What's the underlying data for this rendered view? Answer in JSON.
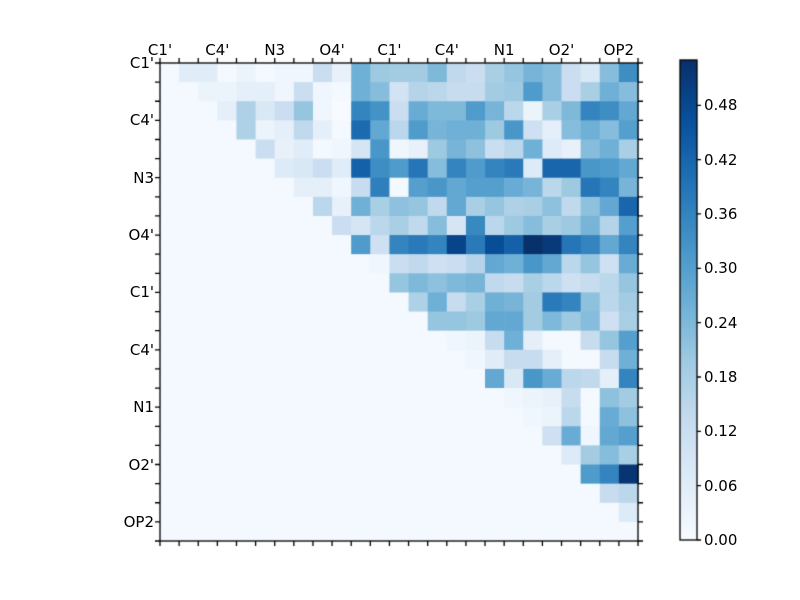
{
  "chart_data": {
    "type": "heatmap",
    "title": "",
    "colormap": "Blues",
    "vmin": 0.0,
    "vmax": 0.53,
    "n": 25,
    "x_labels": [
      "C1'",
      "C4'",
      "N3",
      "O4'",
      "C1'",
      "C4'",
      "N1",
      "O2'",
      "OP2"
    ],
    "y_labels": [
      "C1'",
      "C4'",
      "N3",
      "O4'",
      "C1'",
      "C4'",
      "N1",
      "O2'",
      "OP2"
    ],
    "label_tick_positions": [
      0,
      3,
      6,
      9,
      12,
      15,
      18,
      21,
      24
    ],
    "grid": false,
    "frame_color": "#000000",
    "background_color": "#ffffff",
    "colorbar": {
      "position": "right",
      "tick_labels": [
        "0.48",
        "0.42",
        "0.36",
        "0.30",
        "0.24",
        "0.18",
        "0.12",
        "0.06",
        "0.00"
      ],
      "tick_values": [
        0.48,
        0.42,
        0.36,
        0.3,
        0.24,
        0.18,
        0.12,
        0.06,
        0.0
      ]
    },
    "matrix": [
      [
        0.01,
        0.06,
        0.06,
        0.01,
        0.03,
        0.01,
        0.02,
        0.02,
        0.12,
        0.04,
        0.26,
        0.2,
        0.19,
        0.19,
        0.24,
        0.14,
        0.12,
        0.18,
        0.21,
        0.25,
        0.23,
        0.12,
        0.08,
        0.23,
        0.34
      ],
      [
        0.01,
        0.01,
        0.03,
        0.03,
        0.05,
        0.05,
        0.02,
        0.12,
        0.02,
        0.01,
        0.26,
        0.23,
        0.1,
        0.16,
        0.15,
        0.13,
        0.13,
        0.19,
        0.2,
        0.31,
        0.23,
        0.12,
        0.18,
        0.26,
        0.23
      ],
      [
        0.01,
        0.01,
        0.01,
        0.05,
        0.17,
        0.08,
        0.12,
        0.21,
        0.02,
        0.0,
        0.36,
        0.33,
        0.12,
        0.27,
        0.24,
        0.24,
        0.31,
        0.25,
        0.15,
        0.03,
        0.18,
        0.24,
        0.36,
        0.34,
        0.28
      ],
      [
        0.01,
        0.01,
        0.01,
        0.01,
        0.17,
        0.03,
        0.05,
        0.14,
        0.05,
        0.01,
        0.41,
        0.28,
        0.15,
        0.31,
        0.25,
        0.26,
        0.26,
        0.2,
        0.32,
        0.11,
        0.05,
        0.23,
        0.26,
        0.23,
        0.3
      ],
      [
        0.01,
        0.01,
        0.01,
        0.01,
        0.01,
        0.12,
        0.04,
        0.06,
        0.01,
        0.02,
        0.09,
        0.32,
        0.02,
        0.04,
        0.2,
        0.25,
        0.22,
        0.12,
        0.15,
        0.26,
        0.07,
        0.04,
        0.23,
        0.26,
        0.18
      ],
      [
        0.01,
        0.01,
        0.01,
        0.01,
        0.01,
        0.01,
        0.07,
        0.08,
        0.12,
        0.06,
        0.43,
        0.34,
        0.31,
        0.39,
        0.23,
        0.36,
        0.31,
        0.36,
        0.38,
        0.07,
        0.42,
        0.42,
        0.32,
        0.31,
        0.28
      ],
      [
        0.01,
        0.01,
        0.01,
        0.01,
        0.01,
        0.01,
        0.01,
        0.05,
        0.05,
        0.02,
        0.13,
        0.37,
        0.01,
        0.3,
        0.32,
        0.28,
        0.3,
        0.3,
        0.27,
        0.25,
        0.15,
        0.2,
        0.39,
        0.36,
        0.25
      ],
      [
        0.01,
        0.01,
        0.01,
        0.01,
        0.01,
        0.01,
        0.01,
        0.01,
        0.15,
        0.04,
        0.26,
        0.18,
        0.22,
        0.21,
        0.14,
        0.28,
        0.18,
        0.21,
        0.17,
        0.18,
        0.22,
        0.14,
        0.22,
        0.28,
        0.42
      ],
      [
        0.01,
        0.01,
        0.01,
        0.01,
        0.01,
        0.01,
        0.01,
        0.01,
        0.01,
        0.12,
        0.09,
        0.15,
        0.18,
        0.14,
        0.23,
        0.09,
        0.35,
        0.15,
        0.2,
        0.23,
        0.18,
        0.2,
        0.25,
        0.16,
        0.3
      ],
      [
        0.01,
        0.01,
        0.01,
        0.01,
        0.01,
        0.01,
        0.01,
        0.01,
        0.01,
        0.01,
        0.31,
        0.11,
        0.36,
        0.38,
        0.36,
        0.49,
        0.38,
        0.47,
        0.43,
        0.53,
        0.51,
        0.39,
        0.36,
        0.28,
        0.36
      ],
      [
        0.01,
        0.01,
        0.01,
        0.01,
        0.01,
        0.01,
        0.01,
        0.01,
        0.01,
        0.01,
        0.01,
        0.02,
        0.12,
        0.14,
        0.11,
        0.12,
        0.16,
        0.28,
        0.26,
        0.32,
        0.28,
        0.15,
        0.21,
        0.11,
        0.27
      ],
      [
        0.01,
        0.01,
        0.01,
        0.01,
        0.01,
        0.01,
        0.01,
        0.01,
        0.01,
        0.01,
        0.01,
        0.01,
        0.21,
        0.24,
        0.22,
        0.24,
        0.25,
        0.14,
        0.13,
        0.18,
        0.15,
        0.11,
        0.13,
        0.15,
        0.21
      ],
      [
        0.01,
        0.01,
        0.01,
        0.01,
        0.01,
        0.01,
        0.01,
        0.01,
        0.01,
        0.01,
        0.01,
        0.01,
        0.01,
        0.17,
        0.26,
        0.13,
        0.18,
        0.26,
        0.25,
        0.19,
        0.38,
        0.36,
        0.22,
        0.15,
        0.19
      ],
      [
        0.01,
        0.01,
        0.01,
        0.01,
        0.01,
        0.01,
        0.01,
        0.01,
        0.01,
        0.01,
        0.01,
        0.01,
        0.01,
        0.01,
        0.21,
        0.21,
        0.2,
        0.28,
        0.28,
        0.19,
        0.24,
        0.2,
        0.23,
        0.11,
        0.18
      ],
      [
        0.01,
        0.01,
        0.01,
        0.01,
        0.01,
        0.01,
        0.01,
        0.01,
        0.01,
        0.01,
        0.01,
        0.01,
        0.01,
        0.01,
        0.01,
        0.02,
        0.03,
        0.13,
        0.26,
        0.05,
        0.01,
        0.01,
        0.13,
        0.21,
        0.3
      ],
      [
        0.01,
        0.01,
        0.01,
        0.01,
        0.01,
        0.01,
        0.01,
        0.01,
        0.01,
        0.01,
        0.01,
        0.01,
        0.01,
        0.01,
        0.01,
        0.01,
        0.02,
        0.06,
        0.13,
        0.13,
        0.05,
        0.01,
        0.01,
        0.13,
        0.26
      ],
      [
        0.01,
        0.01,
        0.01,
        0.01,
        0.01,
        0.01,
        0.01,
        0.01,
        0.01,
        0.01,
        0.01,
        0.01,
        0.01,
        0.01,
        0.01,
        0.01,
        0.01,
        0.28,
        0.08,
        0.32,
        0.27,
        0.15,
        0.14,
        0.05,
        0.36
      ],
      [
        0.01,
        0.01,
        0.01,
        0.01,
        0.01,
        0.01,
        0.01,
        0.01,
        0.01,
        0.01,
        0.01,
        0.01,
        0.01,
        0.01,
        0.01,
        0.01,
        0.01,
        0.01,
        0.02,
        0.03,
        0.04,
        0.13,
        0.01,
        0.22,
        0.19
      ],
      [
        0.01,
        0.01,
        0.01,
        0.01,
        0.01,
        0.01,
        0.01,
        0.01,
        0.01,
        0.01,
        0.01,
        0.01,
        0.01,
        0.01,
        0.01,
        0.01,
        0.01,
        0.01,
        0.01,
        0.02,
        0.03,
        0.15,
        0.01,
        0.27,
        0.22
      ],
      [
        0.01,
        0.01,
        0.01,
        0.01,
        0.01,
        0.01,
        0.01,
        0.01,
        0.01,
        0.01,
        0.01,
        0.01,
        0.01,
        0.01,
        0.01,
        0.01,
        0.01,
        0.01,
        0.01,
        0.01,
        0.11,
        0.27,
        0.02,
        0.28,
        0.3
      ],
      [
        0.01,
        0.01,
        0.01,
        0.01,
        0.01,
        0.01,
        0.01,
        0.01,
        0.01,
        0.01,
        0.01,
        0.01,
        0.01,
        0.01,
        0.01,
        0.01,
        0.01,
        0.01,
        0.01,
        0.01,
        0.01,
        0.07,
        0.19,
        0.23,
        0.18
      ],
      [
        0.01,
        0.01,
        0.01,
        0.01,
        0.01,
        0.01,
        0.01,
        0.01,
        0.01,
        0.01,
        0.01,
        0.01,
        0.01,
        0.01,
        0.01,
        0.01,
        0.01,
        0.01,
        0.01,
        0.01,
        0.01,
        0.01,
        0.31,
        0.36,
        0.52
      ],
      [
        0.01,
        0.01,
        0.01,
        0.01,
        0.01,
        0.01,
        0.01,
        0.01,
        0.01,
        0.01,
        0.01,
        0.01,
        0.01,
        0.01,
        0.01,
        0.01,
        0.01,
        0.01,
        0.01,
        0.01,
        0.01,
        0.01,
        0.01,
        0.13,
        0.15
      ],
      [
        0.01,
        0.01,
        0.01,
        0.01,
        0.01,
        0.01,
        0.01,
        0.01,
        0.01,
        0.01,
        0.01,
        0.01,
        0.01,
        0.01,
        0.01,
        0.01,
        0.01,
        0.01,
        0.01,
        0.01,
        0.01,
        0.01,
        0.01,
        0.01,
        0.07
      ],
      [
        0.01,
        0.01,
        0.01,
        0.01,
        0.01,
        0.01,
        0.01,
        0.01,
        0.01,
        0.01,
        0.01,
        0.01,
        0.01,
        0.01,
        0.01,
        0.01,
        0.01,
        0.01,
        0.01,
        0.01,
        0.01,
        0.01,
        0.01,
        0.01,
        0.01
      ]
    ]
  }
}
